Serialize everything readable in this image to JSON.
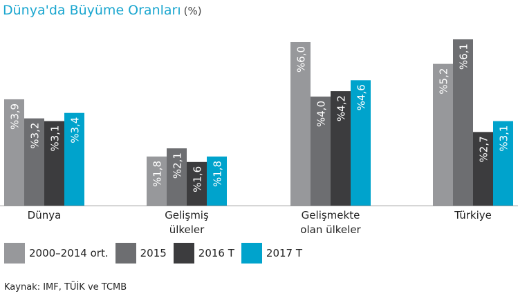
{
  "title": "Dünya'da Büyüme Oranları",
  "title_unit": "(%)",
  "source": "Kaynak: IMF, TÜİK ve TCMB",
  "chart_data": {
    "type": "bar",
    "categories": [
      "Dünya",
      "Gelişmiş\nülkeler",
      "Gelişmekte\nolan ülkeler",
      "Türkiye"
    ],
    "series": [
      {
        "name": "2000–2014 ort.",
        "color": "#97989b",
        "values": [
          3.9,
          1.8,
          6.0,
          5.2
        ],
        "labels": [
          "%3,9",
          "%1,8",
          "%6,0",
          "%5,2"
        ]
      },
      {
        "name": "2015",
        "color": "#6d6e71",
        "values": [
          3.2,
          2.1,
          4.0,
          6.1
        ],
        "labels": [
          "%3,2",
          "%2,1",
          "%4,0",
          "%6,1"
        ]
      },
      {
        "name": "2016 T",
        "color": "#3c3c3e",
        "values": [
          3.1,
          1.6,
          4.2,
          2.7
        ],
        "labels": [
          "%3,1",
          "%1,6",
          "%4,2",
          "%2,7"
        ]
      },
      {
        "name": "2017 T",
        "color": "#00a3cc",
        "values": [
          3.4,
          1.8,
          4.6,
          3.1
        ],
        "labels": [
          "%3,4",
          "%1,8",
          "%4,6",
          "%3,1"
        ]
      }
    ],
    "ylim": [
      0,
      6.7
    ],
    "grid": false,
    "legend_position": "bottom-left"
  }
}
